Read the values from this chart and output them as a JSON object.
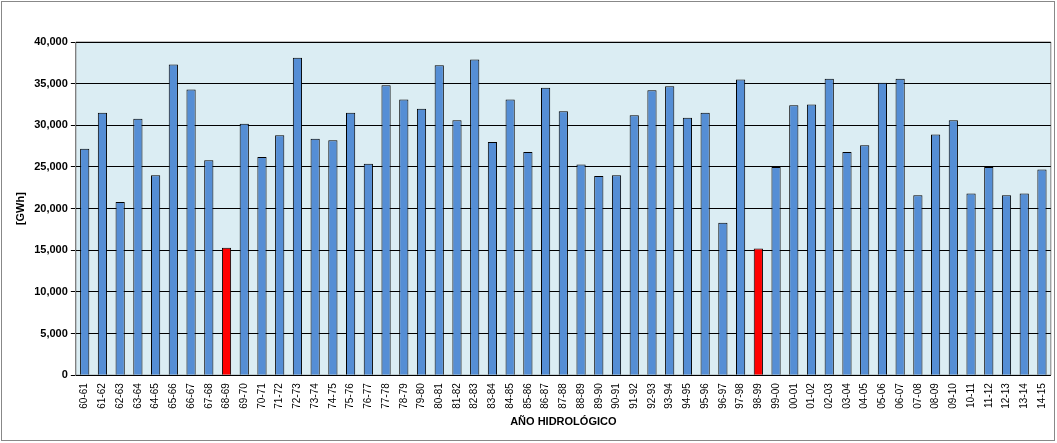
{
  "chart_data": {
    "type": "bar",
    "xlabel": "AÑO HIDROLÓGICO",
    "ylabel": "[GWh]",
    "categories": [
      "60-61",
      "61-62",
      "62-63",
      "63-64",
      "64-65",
      "65-66",
      "66-67",
      "67-68",
      "68-69",
      "69-70",
      "70-71",
      "71-72",
      "72-73",
      "73-74",
      "74-75",
      "75-76",
      "76-77",
      "77-78",
      "78-79",
      "79-80",
      "80-81",
      "81-82",
      "82-83",
      "83-84",
      "84-85",
      "85-86",
      "86-87",
      "87-88",
      "88-89",
      "89-90",
      "90-91",
      "91-92",
      "92-93",
      "93-94",
      "94-95",
      "95-96",
      "96-97",
      "97-98",
      "98-99",
      "99-00",
      "00-01",
      "01-02",
      "02-03",
      "03-04",
      "04-05",
      "05-06",
      "06-07",
      "07-08",
      "08-09",
      "09-10",
      "10-11",
      "11-12",
      "12-13",
      "13-14",
      "14-15"
    ],
    "values": [
      27200,
      31500,
      20800,
      30800,
      24000,
      37300,
      34300,
      25800,
      15300,
      30200,
      26200,
      28800,
      38100,
      28400,
      28200,
      31500,
      25400,
      34800,
      33100,
      32000,
      37200,
      30600,
      37900,
      28000,
      33100,
      26800,
      34500,
      31700,
      25300,
      23900,
      24000,
      31200,
      34200,
      34700,
      30900,
      31500,
      18300,
      35500,
      15200,
      25000,
      32400,
      32500,
      35600,
      26800,
      27600,
      35100,
      35600,
      21600,
      28900,
      30600,
      21800,
      25000,
      21600,
      21800,
      24700
    ],
    "colors": [
      "#558ed5",
      "#558ed5",
      "#558ed5",
      "#558ed5",
      "#558ed5",
      "#558ed5",
      "#558ed5",
      "#558ed5",
      "#ff0000",
      "#558ed5",
      "#558ed5",
      "#558ed5",
      "#558ed5",
      "#558ed5",
      "#558ed5",
      "#558ed5",
      "#558ed5",
      "#558ed5",
      "#558ed5",
      "#558ed5",
      "#558ed5",
      "#558ed5",
      "#558ed5",
      "#558ed5",
      "#558ed5",
      "#558ed5",
      "#558ed5",
      "#558ed5",
      "#558ed5",
      "#558ed5",
      "#558ed5",
      "#558ed5",
      "#558ed5",
      "#558ed5",
      "#558ed5",
      "#558ed5",
      "#558ed5",
      "#558ed5",
      "#ff0000",
      "#558ed5",
      "#558ed5",
      "#558ed5",
      "#558ed5",
      "#558ed5",
      "#558ed5",
      "#558ed5",
      "#558ed5",
      "#558ed5",
      "#558ed5",
      "#558ed5",
      "#558ed5",
      "#558ed5",
      "#558ed5",
      "#558ed5",
      "#558ed5"
    ],
    "ylim": [
      0,
      40000
    ],
    "yticks": [
      0,
      {
        "value": 5000,
        "label": "5,000"
      },
      {
        "value": 10000,
        "label": "10,000"
      },
      {
        "value": 15000,
        "label": "15,000"
      },
      {
        "value": 20000,
        "label": "20,000"
      },
      {
        "value": 25000,
        "label": "25,000"
      },
      {
        "value": 30000,
        "label": "30,000"
      },
      {
        "value": 35000,
        "label": "35,000"
      },
      {
        "value": 40000,
        "label": "40,000"
      }
    ],
    "grid": "y",
    "legend": false
  }
}
